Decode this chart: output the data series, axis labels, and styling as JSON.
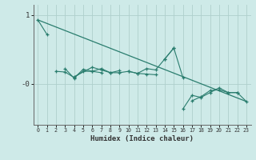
{
  "xlabel": "Humidex (Indice chaleur)",
  "bg_color": "#ceeae8",
  "line_color": "#2a7d6e",
  "grid_color": "#aecfcc",
  "ylim": [
    -0.6,
    1.15
  ],
  "xlim": [
    -0.5,
    23.5
  ],
  "series": [
    {
      "x": [
        0,
        1
      ],
      "y": [
        0.93,
        0.72
      ]
    },
    {
      "x": [
        2,
        3,
        4,
        5,
        6,
        7
      ],
      "y": [
        0.18,
        0.17,
        0.09,
        0.18,
        0.18,
        0.16
      ]
    },
    {
      "x": [
        3,
        4,
        5,
        6,
        7,
        8,
        9
      ],
      "y": [
        0.22,
        0.08,
        0.21,
        0.18,
        0.22,
        0.16,
        0.19
      ]
    },
    {
      "x": [
        4,
        6,
        7,
        8,
        9,
        10,
        11,
        12,
        13
      ],
      "y": [
        0.1,
        0.24,
        0.2,
        0.16,
        0.16,
        0.18,
        0.15,
        0.14,
        0.13
      ]
    },
    {
      "x": [
        10,
        11,
        12,
        13,
        14,
        15
      ],
      "y": [
        0.18,
        0.15,
        0.22,
        0.2,
        0.36,
        0.52
      ]
    },
    {
      "x": [
        14,
        15,
        16
      ],
      "y": [
        0.36,
        0.52,
        0.09
      ]
    },
    {
      "x": [
        16,
        17,
        18,
        19,
        20,
        21,
        22,
        23
      ],
      "y": [
        -0.37,
        -0.17,
        -0.2,
        -0.13,
        -0.06,
        -0.13,
        -0.13,
        -0.26
      ]
    },
    {
      "x": [
        17,
        18,
        19,
        20,
        21,
        22
      ],
      "y": [
        -0.25,
        -0.19,
        -0.1,
        -0.09,
        -0.13,
        -0.13
      ]
    }
  ],
  "regression": {
    "x": [
      0,
      23
    ],
    "y": [
      0.93,
      -0.26
    ]
  },
  "ytick_vals": [
    1,
    0
  ],
  "ytick_labels": [
    "1",
    "-0"
  ]
}
